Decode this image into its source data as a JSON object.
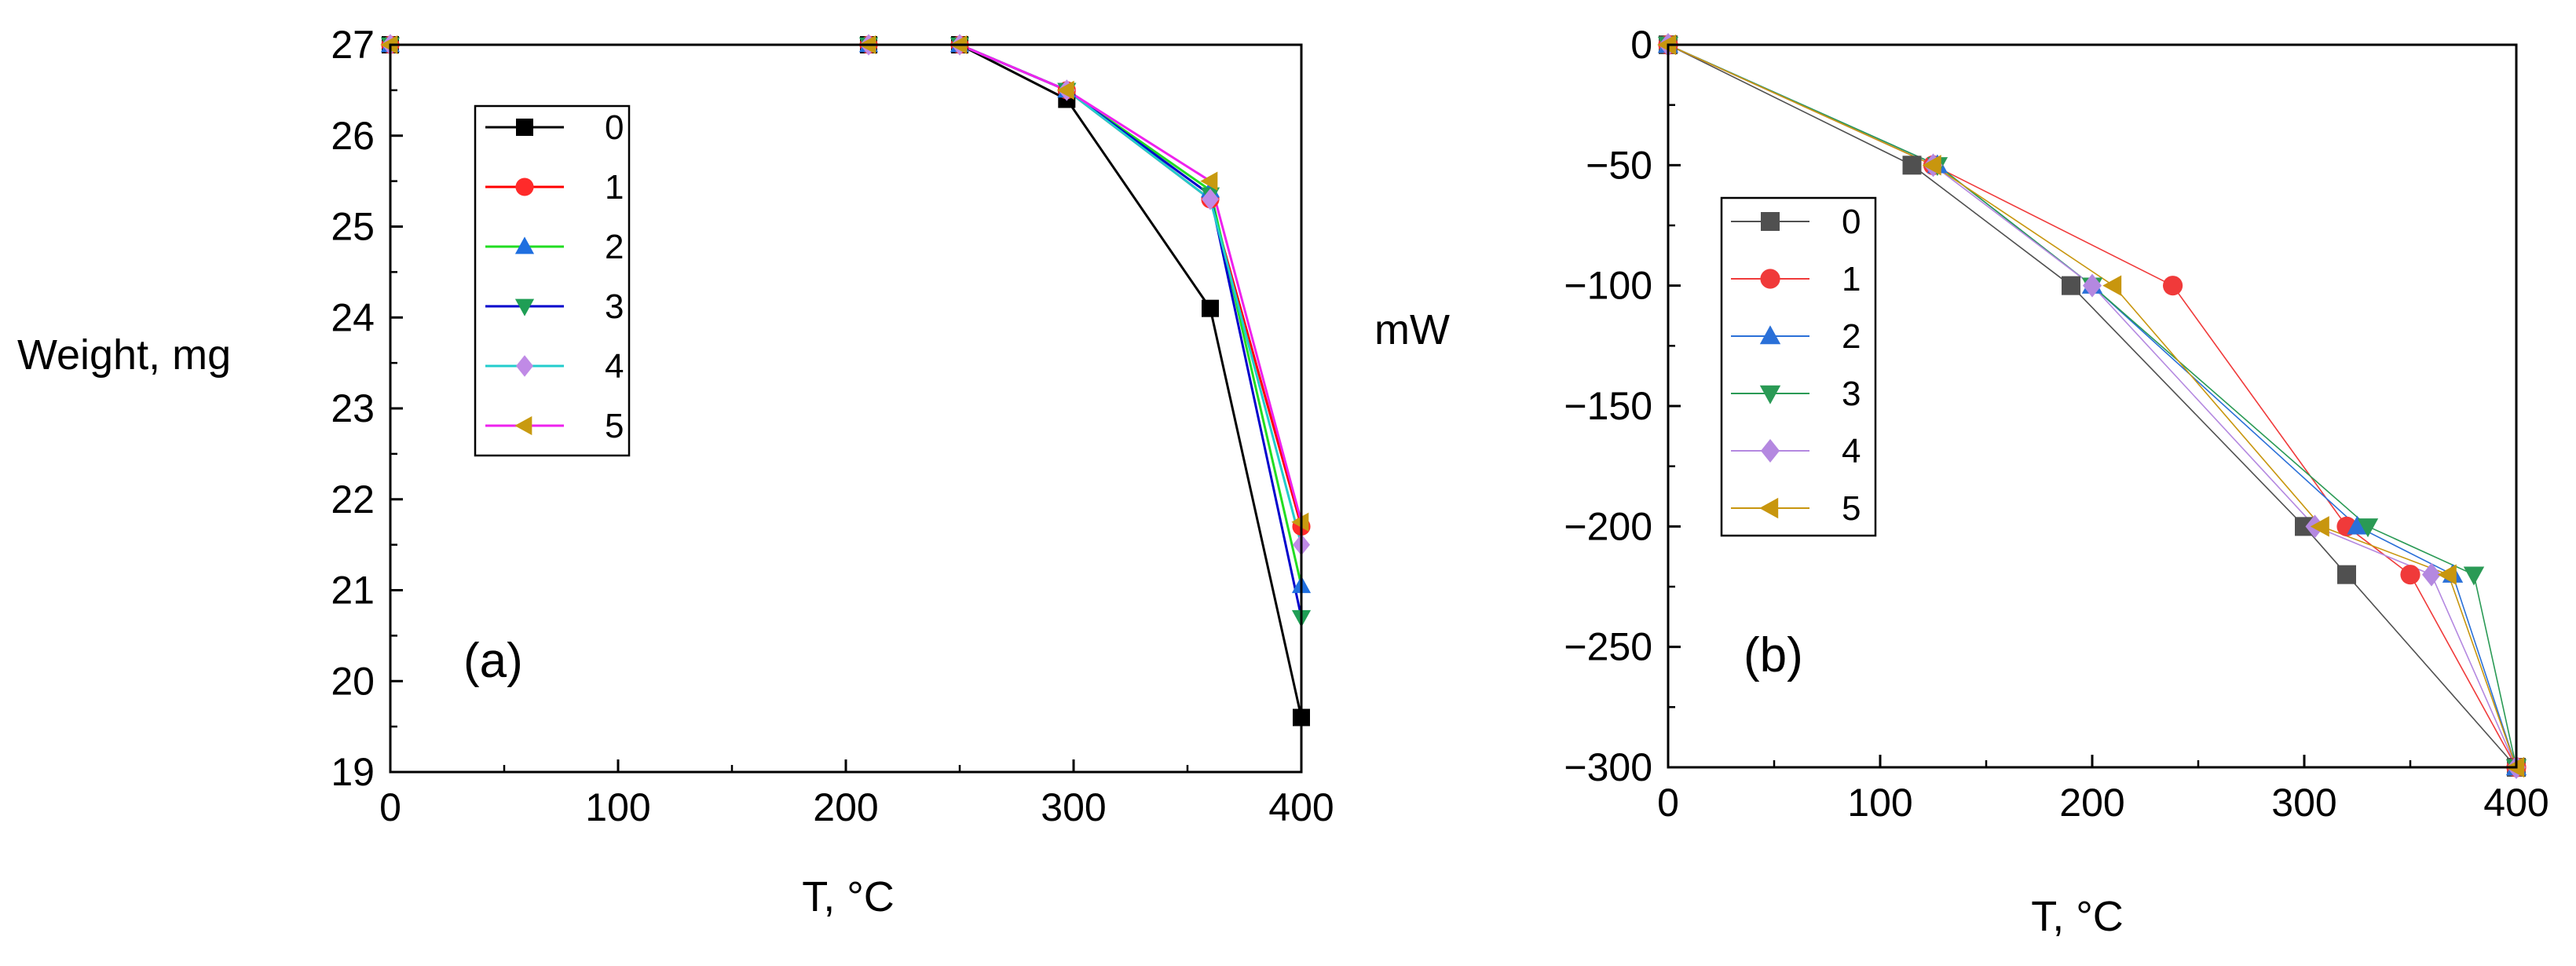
{
  "chart_data": [
    {
      "type": "line",
      "panel_label": "(a)",
      "xlabel": "T, °C",
      "ylabel": "Weight, mg",
      "xlim": [
        0,
        400
      ],
      "ylim": [
        19,
        27
      ],
      "xticks": [
        "0",
        "100",
        "200",
        "300",
        "400"
      ],
      "yticks": [
        "19",
        "20",
        "21",
        "22",
        "23",
        "24",
        "25",
        "26",
        "27"
      ],
      "legend_position": "upper-left",
      "series": [
        {
          "name": "0",
          "color": "#000000",
          "marker": "square",
          "x": [
            0,
            210,
            250,
            297,
            360,
            400
          ],
          "y": [
            27,
            27,
            27,
            26.4,
            24.1,
            19.6
          ]
        },
        {
          "name": "1",
          "color": "#ff2a2a",
          "marker": "circle",
          "x": [
            0,
            210,
            250,
            297,
            360,
            400
          ],
          "y": [
            27,
            27,
            27,
            26.5,
            25.3,
            21.7
          ]
        },
        {
          "name": "2",
          "color": "#1f6fe0",
          "marker": "triangle-up",
          "x": [
            0,
            210,
            250,
            297,
            360,
            400
          ],
          "y": [
            27,
            27,
            27,
            26.5,
            25.4,
            21.05
          ]
        },
        {
          "name": "3",
          "color": "#1f9e55",
          "marker": "triangle-down",
          "x": [
            0,
            210,
            250,
            297,
            360,
            400
          ],
          "y": [
            27,
            27,
            27,
            26.5,
            25.35,
            20.7
          ]
        },
        {
          "name": "4",
          "color": "#c08ae6",
          "marker": "diamond",
          "x": [
            0,
            210,
            250,
            297,
            360,
            400
          ],
          "y": [
            27,
            27,
            27,
            26.5,
            25.3,
            21.5
          ]
        },
        {
          "name": "5",
          "color": "#c89a10",
          "marker": "triangle-left",
          "x": [
            0,
            210,
            250,
            297,
            360,
            400
          ],
          "y": [
            27,
            27,
            27,
            26.5,
            25.5,
            21.75
          ]
        }
      ],
      "line_colors": [
        "#000000",
        "#ff0000",
        "#22dd22",
        "#0000cc",
        "#22cccc",
        "#ee22ee"
      ]
    },
    {
      "type": "line",
      "panel_label": "(b)",
      "xlabel": "T, °C",
      "ylabel": "mW",
      "xlim": [
        0,
        400
      ],
      "ylim": [
        -300,
        0
      ],
      "xticks": [
        "0",
        "100",
        "200",
        "300",
        "400"
      ],
      "yticks": [
        "0",
        "-50",
        "-100",
        "-150",
        "-200",
        "-250",
        "-300"
      ],
      "legend_position": "left-center",
      "series": [
        {
          "name": "0",
          "color": "#505050",
          "marker": "square",
          "x": [
            0,
            115,
            190,
            300,
            320,
            400
          ],
          "y": [
            0,
            -50,
            -100,
            -200,
            -220,
            -300
          ]
        },
        {
          "name": "1",
          "color": "#f03a3a",
          "marker": "circle",
          "x": [
            0,
            125,
            238,
            320,
            350,
            400
          ],
          "y": [
            0,
            -50,
            -100,
            -200,
            -220,
            -300
          ]
        },
        {
          "name": "2",
          "color": "#2a70d8",
          "marker": "triangle-up",
          "x": [
            0,
            127,
            200,
            325,
            370,
            400
          ],
          "y": [
            0,
            -50,
            -100,
            -200,
            -220,
            -300
          ]
        },
        {
          "name": "3",
          "color": "#2a9a55",
          "marker": "triangle-down",
          "x": [
            0,
            127,
            200,
            330,
            380,
            400
          ],
          "y": [
            0,
            -50,
            -100,
            -200,
            -220,
            -300
          ]
        },
        {
          "name": "4",
          "color": "#b488e0",
          "marker": "diamond",
          "x": [
            0,
            125,
            200,
            305,
            360,
            400
          ],
          "y": [
            0,
            -50,
            -100,
            -200,
            -220,
            -300
          ]
        },
        {
          "name": "5",
          "color": "#c8960e",
          "marker": "triangle-left",
          "x": [
            0,
            125,
            210,
            308,
            368,
            400
          ],
          "y": [
            0,
            -50,
            -100,
            -200,
            -220,
            -300
          ]
        }
      ]
    }
  ]
}
